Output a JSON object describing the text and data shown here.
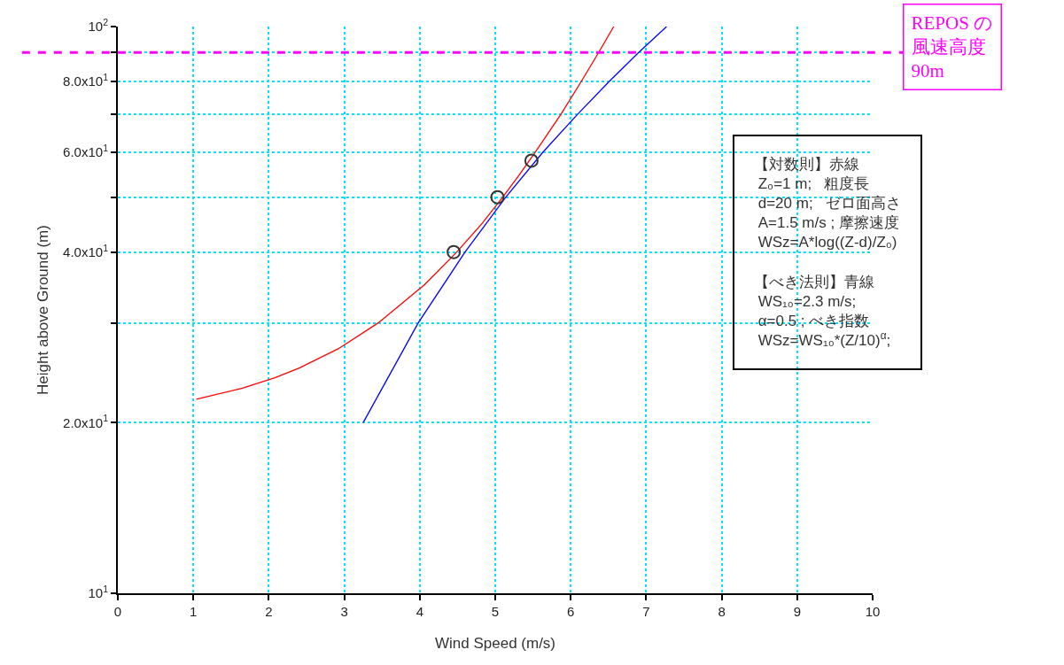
{
  "chart_data": {
    "type": "line",
    "xlabel": "Wind Speed (m/s)",
    "ylabel": "Height above Ground (m)",
    "xlim": [
      0,
      10
    ],
    "xticks": [
      0,
      1,
      2,
      3,
      4,
      5,
      6,
      7,
      8,
      9,
      10
    ],
    "ylim": [
      10,
      100
    ],
    "log": "y",
    "yticks": [
      {
        "value": 10,
        "label": "10$^{1}$"
      },
      {
        "value": 20,
        "label": "2.0x10$^{1}$"
      },
      {
        "value": 30,
        "label": null
      },
      {
        "value": 40,
        "label": "4.0x10$^{1}$"
      },
      {
        "value": 50,
        "label": null
      },
      {
        "value": 60,
        "label": "6.0x10$^{1}$"
      },
      {
        "value": 70,
        "label": null
      },
      {
        "value": 80,
        "label": "8.0x10$^{1}$"
      },
      {
        "value": 90,
        "label": null
      },
      {
        "value": 100,
        "label": "10$^{2}$"
      }
    ],
    "grid": true,
    "series": [
      {
        "color": "#ff0000",
        "marker": "none",
        "x": [
          1.04,
          1.65,
          2.08,
          2.41,
          2.92,
          3.45,
          4.06,
          4.49,
          4.83,
          5.1,
          5.33,
          5.53,
          5.87,
          6.14,
          6.37,
          6.57
        ],
        "values": [
          22,
          23,
          24,
          25,
          27,
          30,
          35,
          40,
          45,
          50,
          55,
          60,
          70,
          80,
          90,
          100
        ]
      },
      {
        "color": "#0000ff",
        "marker": "none",
        "x": [
          3.25,
          3.98,
          4.6,
          5.14,
          5.63,
          6.09,
          6.51,
          6.9,
          7.27
        ],
        "values": [
          20,
          30,
          40,
          50,
          60,
          70,
          80,
          90,
          100
        ]
      },
      {
        "type": "scatter",
        "color": "#333333",
        "marker": "circle",
        "x": [
          4.45,
          5.03,
          5.48
        ],
        "values": [
          40,
          50,
          58
        ]
      }
    ],
    "ref_lines": [
      {
        "axis": "y",
        "value": 90,
        "label": "REPOS の風速高度90m",
        "color": "#ff00ff",
        "line_style": "dashed"
      }
    ],
    "annotations": [
      "【対数則】赤線\n Z₀=1 m;   粗度長\n d=20 m;   ゼロ面高さ\n A=1.5 m/s ; 摩擦速度\n WSz=A*log((Z-d)/Z₀)\n\n【べき法則】青線\n WS₁₀=2.3 m/s;\n α=0.5 ; べき指数\n WSz=WS₁₀*(Z/10)$^{α}$;"
    ]
  }
}
